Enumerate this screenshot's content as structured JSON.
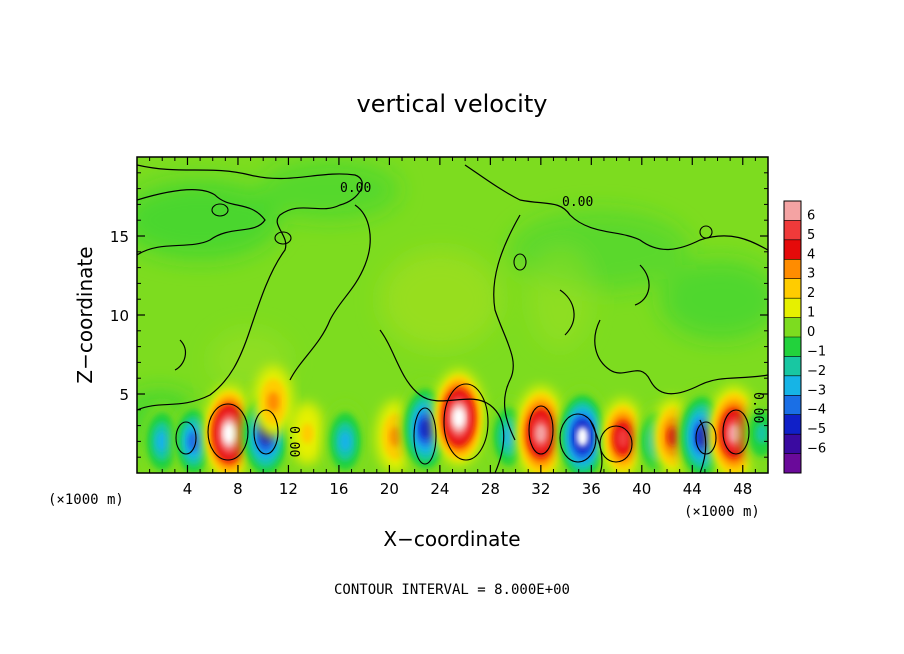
{
  "chart_data": {
    "type": "heatmap",
    "title": "vertical velocity",
    "xlabel": "X−coordinate",
    "ylabel": "Z−coordinate",
    "x_unit_left": "(×1000 m)",
    "x_unit_right": "(×1000 m)",
    "footer": "CONTOUR INTERVAL = 8.000E+00",
    "xlim": [
      0,
      50
    ],
    "ylim": [
      0,
      20
    ],
    "x_ticks": [
      4,
      8,
      12,
      16,
      20,
      24,
      28,
      32,
      36,
      40,
      44,
      48
    ],
    "x_tick_labels": [
      "4",
      "8",
      "12",
      "16",
      "20",
      "24",
      "28",
      "32",
      "36",
      "40",
      "44",
      "48"
    ],
    "y_ticks": [
      5,
      10,
      15
    ],
    "y_tick_labels": [
      "5",
      "10",
      "15"
    ],
    "colorbar": {
      "levels": [
        6,
        5,
        4,
        3,
        2,
        1,
        0,
        -1,
        -2,
        -3,
        -4,
        -5,
        -6
      ],
      "labels": [
        "6",
        "5",
        "4",
        "3",
        "2",
        "1",
        "0",
        "−1",
        "−2",
        "−3",
        "−4",
        "−5",
        "−6"
      ],
      "colors": [
        "#f4a3a3",
        "#f03a3a",
        "#e50a0a",
        "#ff8c00",
        "#ffcc00",
        "#e6f000",
        "#7ddc1f",
        "#22d23c",
        "#18c7a2",
        "#16b4e6",
        "#1a6fe6",
        "#1020c8",
        "#3a0aa0",
        "#6a0a9a"
      ]
    },
    "contour_labels": [
      "0.00",
      "0.00",
      "0.00",
      "0.00"
    ],
    "cells": [
      {
        "x": 2,
        "z": 2,
        "w": -3
      },
      {
        "x": 4.5,
        "z": 2,
        "w": -4
      },
      {
        "x": 7.3,
        "z": 2.5,
        "w": 6
      },
      {
        "x": 10.2,
        "z": 2.4,
        "w": -5
      },
      {
        "x": 10.8,
        "z": 4.5,
        "w": 2
      },
      {
        "x": 13.5,
        "z": 2.5,
        "w": 1
      },
      {
        "x": 16.5,
        "z": 2,
        "w": -3
      },
      {
        "x": 20.5,
        "z": 2.3,
        "w": 2
      },
      {
        "x": 22.9,
        "z": 2.8,
        "w": -5
      },
      {
        "x": 25.5,
        "z": 3.5,
        "w": 6
      },
      {
        "x": 29.5,
        "z": 2.3,
        "w": -3
      },
      {
        "x": 32,
        "z": 2.5,
        "w": 5
      },
      {
        "x": 35.3,
        "z": 2.3,
        "w": -6
      },
      {
        "x": 38.5,
        "z": 2.2,
        "w": 4
      },
      {
        "x": 41.2,
        "z": 2,
        "w": -3
      },
      {
        "x": 42.5,
        "z": 2.3,
        "w": 3
      },
      {
        "x": 44.8,
        "z": 2.3,
        "w": -5
      },
      {
        "x": 47.3,
        "z": 2.5,
        "w": 5
      },
      {
        "x": 49.5,
        "z": 2.5,
        "w": -2
      }
    ]
  }
}
